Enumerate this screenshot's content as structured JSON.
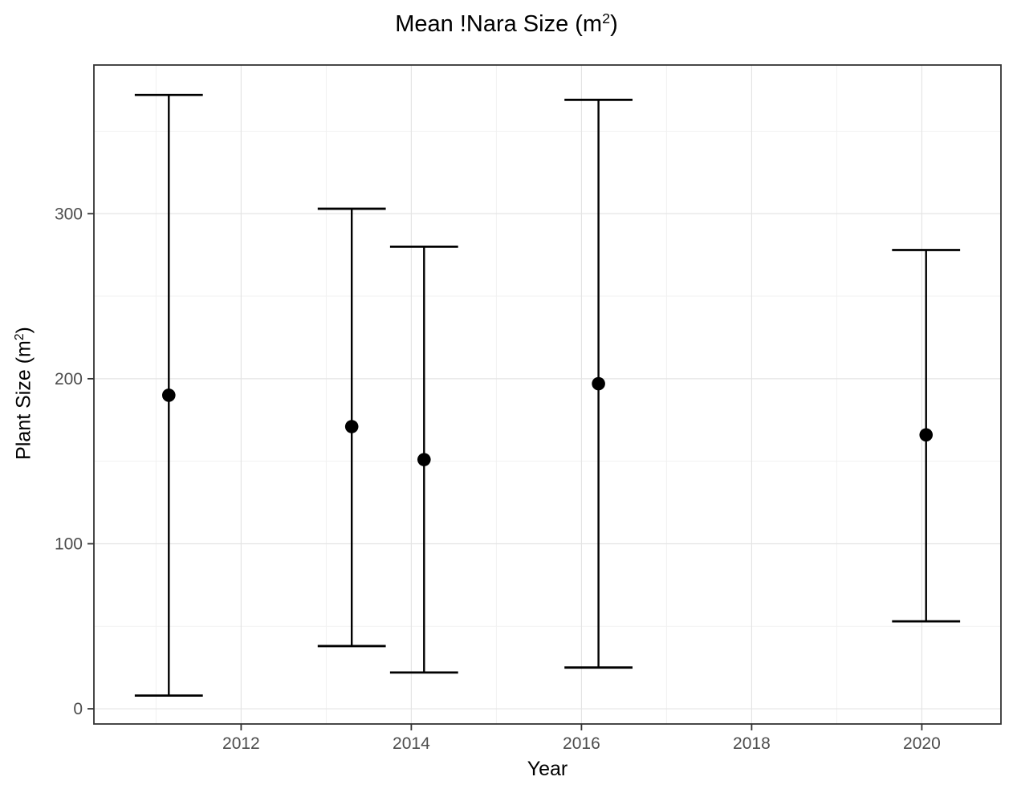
{
  "labels": {
    "title_prefix": "Mean !Nara Size (m",
    "title_sup": "2",
    "title_suffix": ")",
    "ylabel_prefix": "Plant Size (m",
    "ylabel_sup": "2",
    "ylabel_suffix": ")",
    "xlabel": "Year"
  },
  "colors": {
    "background": "#ffffff",
    "panel_background": "#ffffff",
    "panel_border": "#333333",
    "grid_major": "#e4e4e4",
    "grid_minor": "#f1f1f1",
    "tick": "#333333",
    "tick_label": "#4d4d4d",
    "errorbar": "#000000",
    "point": "#000000"
  },
  "chart_data": {
    "type": "errorbar",
    "title": "Mean !Nara Size (m²)",
    "xlabel": "Year",
    "ylabel": "Plant Size (m²)",
    "xlim": [
      2010.27,
      2020.93
    ],
    "ylim": [
      -9.2,
      390.1
    ],
    "x_ticks": [
      2012,
      2014,
      2016,
      2018,
      2020
    ],
    "x_minor_gridlines": [
      2011,
      2013,
      2015,
      2017,
      2019
    ],
    "y_ticks": [
      0,
      100,
      200,
      300
    ],
    "y_minor_gridlines": [
      50,
      150,
      250,
      350
    ],
    "grid": true,
    "legend_position": "none",
    "errorbar_cap_halfwidth_x": 0.4,
    "series": [
      {
        "name": "mean_nara_size",
        "points": [
          {
            "x": 2011.15,
            "mean": 190,
            "lower": 8,
            "upper": 372
          },
          {
            "x": 2013.3,
            "mean": 171,
            "lower": 38,
            "upper": 303
          },
          {
            "x": 2014.15,
            "mean": 151,
            "lower": 22,
            "upper": 280
          },
          {
            "x": 2016.2,
            "mean": 197,
            "lower": 25,
            "upper": 369
          },
          {
            "x": 2020.05,
            "mean": 166,
            "lower": 53,
            "upper": 278
          }
        ]
      }
    ]
  }
}
